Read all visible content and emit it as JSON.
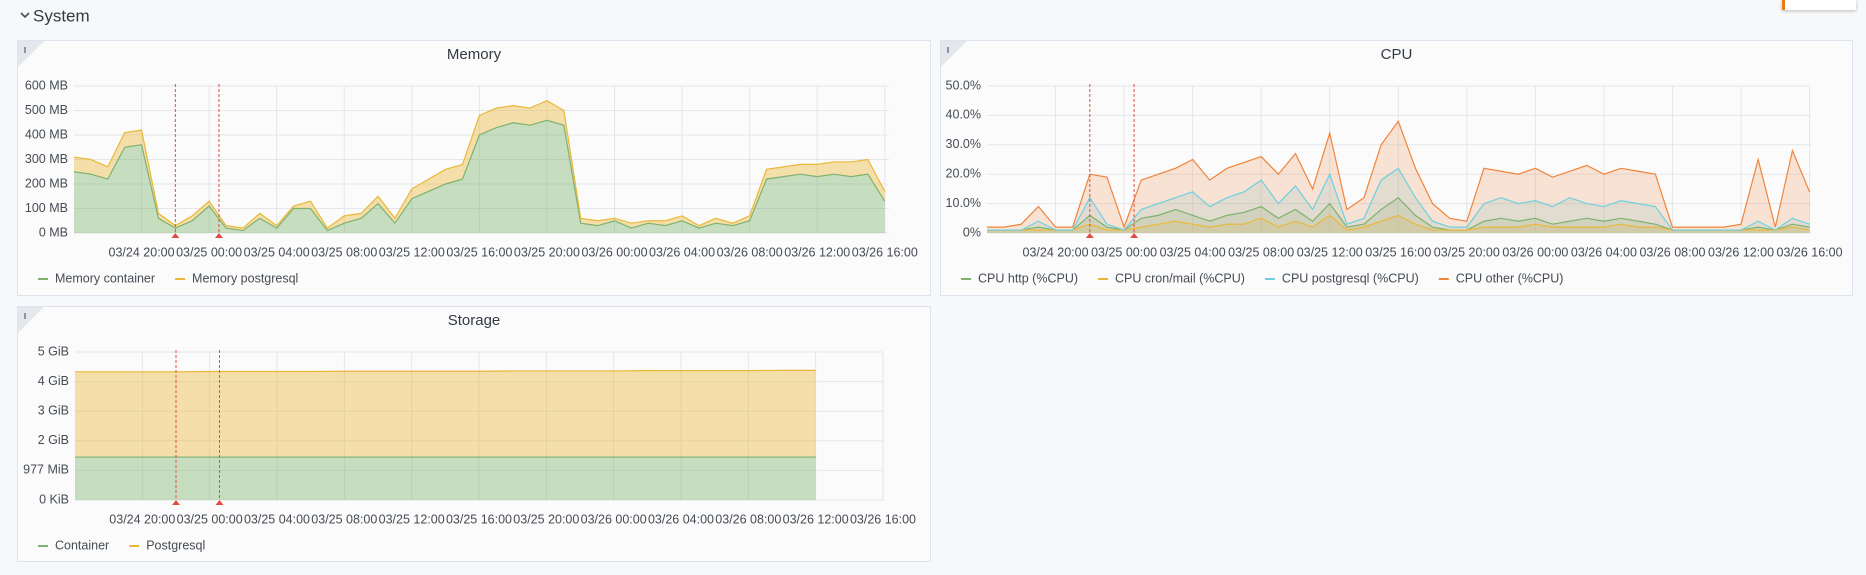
{
  "section": {
    "title": "System"
  },
  "chart_data": [
    {
      "type": "area",
      "title": "Memory",
      "stacked": true,
      "grid": true,
      "x": [
        "03/24 16:00",
        "03/24 17:00",
        "03/24 18:00",
        "03/24 19:00",
        "03/24 20:00",
        "03/24 21:00",
        "03/24 22:00",
        "03/24 23:00",
        "03/25 00:00",
        "03/25 01:00",
        "03/25 02:00",
        "03/25 03:00",
        "03/25 04:00",
        "03/25 05:00",
        "03/25 06:00",
        "03/25 07:00",
        "03/25 08:00",
        "03/25 09:00",
        "03/25 10:00",
        "03/25 11:00",
        "03/25 12:00",
        "03/25 13:00",
        "03/25 14:00",
        "03/25 15:00",
        "03/25 16:00",
        "03/25 17:00",
        "03/25 18:00",
        "03/25 19:00",
        "03/25 20:00",
        "03/25 21:00",
        "03/25 22:00",
        "03/25 23:00",
        "03/26 00:00",
        "03/26 01:00",
        "03/26 02:00",
        "03/26 03:00",
        "03/26 04:00",
        "03/26 05:00",
        "03/26 06:00",
        "03/26 07:00",
        "03/26 08:00",
        "03/26 09:00",
        "03/26 10:00",
        "03/26 11:00",
        "03/26 12:00",
        "03/26 13:00",
        "03/26 14:00",
        "03/26 15:00",
        "03/26 16:00"
      ],
      "xlim": [
        "03/24 16:00",
        "03/26 16:15"
      ],
      "xticks": [
        "03/24 20:00",
        "03/25 00:00",
        "03/25 04:00",
        "03/25 08:00",
        "03/25 12:00",
        "03/25 16:00",
        "03/25 20:00",
        "03/26 00:00",
        "03/26 04:00",
        "03/26 08:00",
        "03/26 12:00",
        "03/26 16:00"
      ],
      "ylim": [
        0,
        600
      ],
      "yticks": [
        {
          "value": 0,
          "label": "0 MB"
        },
        {
          "value": 100,
          "label": "100 MB"
        },
        {
          "value": 200,
          "label": "200 MB"
        },
        {
          "value": 300,
          "label": "300 MB"
        },
        {
          "value": 400,
          "label": "400 MB"
        },
        {
          "value": 500,
          "label": "500 MB"
        },
        {
          "value": 600,
          "label": "600 MB"
        }
      ],
      "annotations": [
        "03/24 22:00",
        "03/25 00:35"
      ],
      "annotation_color": "#e24d42",
      "series": [
        {
          "name": "Memory container",
          "color": "#7eb26d",
          "values": [
            250,
            240,
            220,
            350,
            360,
            60,
            20,
            50,
            110,
            20,
            10,
            60,
            20,
            100,
            100,
            10,
            40,
            60,
            120,
            40,
            140,
            170,
            200,
            220,
            400,
            430,
            450,
            440,
            460,
            440,
            40,
            30,
            50,
            20,
            40,
            30,
            50,
            20,
            40,
            30,
            50,
            220,
            230,
            240,
            230,
            240,
            230,
            240,
            130
          ]
        },
        {
          "name": "Memory postgresql",
          "color": "#eab839",
          "values": [
            60,
            60,
            50,
            60,
            60,
            20,
            10,
            20,
            20,
            10,
            10,
            20,
            10,
            10,
            30,
            10,
            30,
            20,
            30,
            20,
            40,
            50,
            60,
            60,
            80,
            80,
            70,
            70,
            80,
            60,
            20,
            20,
            10,
            20,
            10,
            20,
            20,
            10,
            20,
            10,
            20,
            40,
            40,
            40,
            50,
            50,
            60,
            60,
            40
          ]
        }
      ]
    },
    {
      "type": "area",
      "title": "CPU",
      "stacked": false,
      "grid": true,
      "x": [
        "03/24 16:00",
        "03/24 17:00",
        "03/24 18:00",
        "03/24 19:00",
        "03/24 20:00",
        "03/24 21:00",
        "03/24 22:00",
        "03/24 23:00",
        "03/25 00:00",
        "03/25 01:00",
        "03/25 02:00",
        "03/25 03:00",
        "03/25 04:00",
        "03/25 05:00",
        "03/25 06:00",
        "03/25 07:00",
        "03/25 08:00",
        "03/25 09:00",
        "03/25 10:00",
        "03/25 11:00",
        "03/25 12:00",
        "03/25 13:00",
        "03/25 14:00",
        "03/25 15:00",
        "03/25 16:00",
        "03/25 17:00",
        "03/25 18:00",
        "03/25 19:00",
        "03/25 20:00",
        "03/25 21:00",
        "03/25 22:00",
        "03/25 23:00",
        "03/26 00:00",
        "03/26 01:00",
        "03/26 02:00",
        "03/26 03:00",
        "03/26 04:00",
        "03/26 05:00",
        "03/26 06:00",
        "03/26 07:00",
        "03/26 08:00",
        "03/26 09:00",
        "03/26 10:00",
        "03/26 11:00",
        "03/26 12:00",
        "03/26 13:00",
        "03/26 14:00",
        "03/26 15:00",
        "03/26 16:00"
      ],
      "xlim": [
        "03/24 16:00",
        "03/26 16:05"
      ],
      "xticks": [
        "03/24 20:00",
        "03/25 00:00",
        "03/25 04:00",
        "03/25 08:00",
        "03/25 12:00",
        "03/25 16:00",
        "03/25 20:00",
        "03/26 00:00",
        "03/26 04:00",
        "03/26 08:00",
        "03/26 12:00",
        "03/26 16:00"
      ],
      "ylim": [
        0,
        50
      ],
      "yticks": [
        {
          "value": 0,
          "label": "0%"
        },
        {
          "value": 10,
          "label": "10.0%"
        },
        {
          "value": 20,
          "label": "20.0%"
        },
        {
          "value": 30,
          "label": "30.0%"
        },
        {
          "value": 40,
          "label": "40.0%"
        },
        {
          "value": 50,
          "label": "50.0%"
        }
      ],
      "annotations": [
        "03/24 22:00",
        "03/25 00:35"
      ],
      "annotation_color": "#e24d42",
      "series": [
        {
          "name": "CPU http (%CPU)",
          "color": "#7eb26d",
          "values": [
            1,
            1,
            1,
            2,
            1,
            1,
            6,
            2,
            1,
            5,
            6,
            8,
            6,
            4,
            6,
            7,
            9,
            5,
            8,
            4,
            10,
            2,
            3,
            8,
            12,
            6,
            2,
            1,
            1,
            4,
            5,
            4,
            5,
            3,
            4,
            5,
            4,
            5,
            4,
            3,
            1,
            1,
            1,
            1,
            1,
            2,
            1,
            3,
            2
          ]
        },
        {
          "name": "CPU cron/mail (%CPU)",
          "color": "#eab839",
          "values": [
            1,
            1,
            1,
            1,
            1,
            1,
            3,
            1,
            1,
            2,
            3,
            4,
            3,
            2,
            3,
            3,
            5,
            2,
            4,
            2,
            6,
            1,
            2,
            4,
            6,
            3,
            1,
            1,
            1,
            2,
            2,
            2,
            3,
            2,
            2,
            2,
            2,
            3,
            2,
            2,
            1,
            1,
            1,
            1,
            1,
            1,
            1,
            2,
            1
          ]
        },
        {
          "name": "CPU postgresql (%CPU)",
          "color": "#6ed0e0",
          "values": [
            1,
            1,
            1,
            4,
            1,
            1,
            12,
            3,
            1,
            8,
            10,
            12,
            14,
            9,
            12,
            14,
            18,
            10,
            16,
            8,
            20,
            3,
            5,
            18,
            22,
            12,
            4,
            2,
            2,
            10,
            12,
            10,
            11,
            9,
            12,
            10,
            9,
            11,
            10,
            9,
            1,
            1,
            1,
            1,
            1,
            4,
            1,
            5,
            3
          ]
        },
        {
          "name": "CPU other (%CPU)",
          "color": "#ef843c",
          "values": [
            2,
            2,
            3,
            9,
            2,
            2,
            20,
            19,
            2,
            18,
            20,
            22,
            25,
            18,
            22,
            24,
            26,
            20,
            27,
            15,
            34,
            8,
            12,
            30,
            38,
            22,
            10,
            5,
            4,
            22,
            21,
            20,
            22,
            19,
            21,
            23,
            20,
            22,
            21,
            20,
            2,
            2,
            2,
            2,
            3,
            25,
            2,
            28,
            14
          ]
        }
      ]
    },
    {
      "type": "area",
      "title": "Storage",
      "stacked": true,
      "grid": true,
      "x": [
        "03/24 16:00",
        "03/24 18:00",
        "03/24 20:00",
        "03/24 22:00",
        "03/25 00:00",
        "03/25 02:00",
        "03/25 04:00",
        "03/25 06:00",
        "03/25 08:00",
        "03/25 10:00",
        "03/25 12:00",
        "03/25 14:00",
        "03/25 16:00",
        "03/25 18:00",
        "03/25 20:00",
        "03/25 22:00",
        "03/26 00:00",
        "03/26 02:00",
        "03/26 04:00",
        "03/26 06:00",
        "03/26 08:00",
        "03/26 10:00",
        "03/26 12:00"
      ],
      "xlim": [
        "03/24 16:00",
        "03/26 16:00"
      ],
      "xticks": [
        "03/24 20:00",
        "03/25 00:00",
        "03/25 04:00",
        "03/25 08:00",
        "03/25 12:00",
        "03/25 16:00",
        "03/25 20:00",
        "03/26 00:00",
        "03/26 04:00",
        "03/26 08:00",
        "03/26 12:00",
        "03/26 16:00"
      ],
      "ylim": [
        0,
        5
      ],
      "yticks": [
        {
          "value": 0,
          "label": "0 KiB"
        },
        {
          "value": 1,
          "label": "977 MiB"
        },
        {
          "value": 2,
          "label": "2 GiB"
        },
        {
          "value": 3,
          "label": "3 GiB"
        },
        {
          "value": 4,
          "label": "4 GiB"
        },
        {
          "value": 5,
          "label": "5 GiB"
        }
      ],
      "annotations": [
        "03/24 22:00",
        "03/25 00:35"
      ],
      "annotation_color": "#e24d42",
      "series": [
        {
          "name": "Container",
          "color": "#7eb26d",
          "values": [
            1.45,
            1.45,
            1.45,
            1.45,
            1.45,
            1.45,
            1.45,
            1.45,
            1.45,
            1.45,
            1.45,
            1.45,
            1.45,
            1.45,
            1.45,
            1.45,
            1.45,
            1.45,
            1.45,
            1.45,
            1.45,
            1.45,
            1.45
          ]
        },
        {
          "name": "Postgresql",
          "color": "#eab839",
          "values": [
            2.88,
            2.88,
            2.88,
            2.88,
            2.89,
            2.89,
            2.89,
            2.89,
            2.9,
            2.9,
            2.9,
            2.9,
            2.9,
            2.91,
            2.91,
            2.91,
            2.91,
            2.92,
            2.92,
            2.92,
            2.92,
            2.93,
            2.93
          ]
        }
      ]
    }
  ]
}
